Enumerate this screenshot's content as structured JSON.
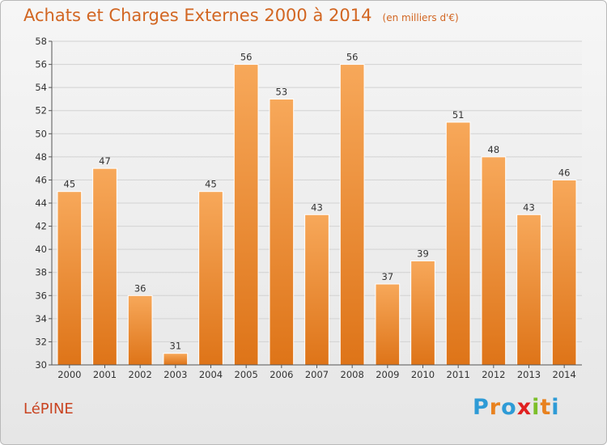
{
  "chart_data": {
    "type": "bar",
    "title": "Achats et Charges Externes 2000 à 2014",
    "subtitle": "(en milliers d'€)",
    "categories": [
      "2000",
      "2001",
      "2002",
      "2003",
      "2004",
      "2005",
      "2006",
      "2007",
      "2008",
      "2009",
      "2010",
      "2011",
      "2012",
      "2013",
      "2014"
    ],
    "values": [
      45,
      47,
      36,
      31,
      45,
      56,
      53,
      43,
      56,
      37,
      39,
      51,
      48,
      43,
      46
    ],
    "ylim": [
      30,
      58
    ],
    "yticks": [
      30,
      32,
      34,
      36,
      38,
      40,
      42,
      44,
      46,
      48,
      50,
      52,
      54,
      56,
      58
    ],
    "grid": true,
    "bar_color": "#e8821f",
    "bar_color_light": "#f7a85a",
    "text_color": "#d26622"
  },
  "footer": {
    "place": "LéPINE",
    "brand": "Proxiti",
    "brand_colors": [
      "#2e9bd6",
      "#e8821f",
      "#2e9bd6",
      "#e02020",
      "#7cbf2a",
      "#e8821f",
      "#2e9bd6"
    ]
  }
}
